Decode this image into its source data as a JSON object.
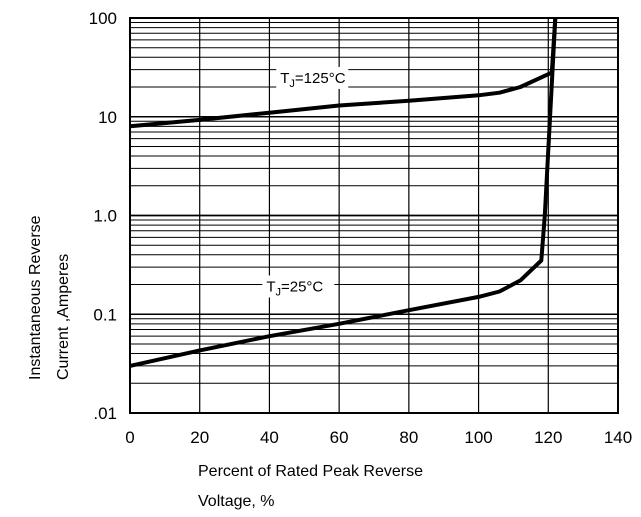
{
  "chart_data": {
    "type": "line",
    "title": "",
    "xlabel_lines": [
      "Percent of Rated Peak Reverse",
      "Voltage, %"
    ],
    "ylabel_lines": [
      "Instantaneous Reverse",
      "Current ,Amperes"
    ],
    "xlim": [
      0,
      140
    ],
    "ylim": [
      0.01,
      100
    ],
    "yscale": "log",
    "grid": "horizontal-log-minor, vertical-at-x-ticks",
    "x_ticks": [
      0,
      20,
      40,
      60,
      80,
      100,
      120,
      140
    ],
    "x_tick_labels": [
      "0",
      "20",
      "40",
      "60",
      "80",
      "100",
      "120",
      "140"
    ],
    "y_ticks": [
      0.01,
      0.1,
      1,
      10,
      100
    ],
    "y_tick_labels": [
      ".01",
      "0.1",
      "1.0",
      "10",
      "100"
    ],
    "series": [
      {
        "name": "TJ=125°C",
        "label_main": "T",
        "label_sub": "J",
        "label_rest": "=125°C",
        "x": [
          0,
          20,
          40,
          60,
          80,
          100,
          106,
          112,
          121,
          122
        ],
        "y": [
          8,
          9.3,
          11,
          13,
          14.5,
          16.5,
          17.5,
          20,
          28,
          100
        ]
      },
      {
        "name": "TJ=25°C",
        "label_main": "T",
        "label_sub": "J",
        "label_rest": "=25°C",
        "x": [
          0,
          20,
          40,
          60,
          80,
          100,
          106,
          112,
          118,
          119,
          122
        ],
        "y": [
          0.03,
          0.043,
          0.06,
          0.08,
          0.11,
          0.15,
          0.17,
          0.22,
          0.35,
          1.0,
          100
        ]
      }
    ]
  }
}
